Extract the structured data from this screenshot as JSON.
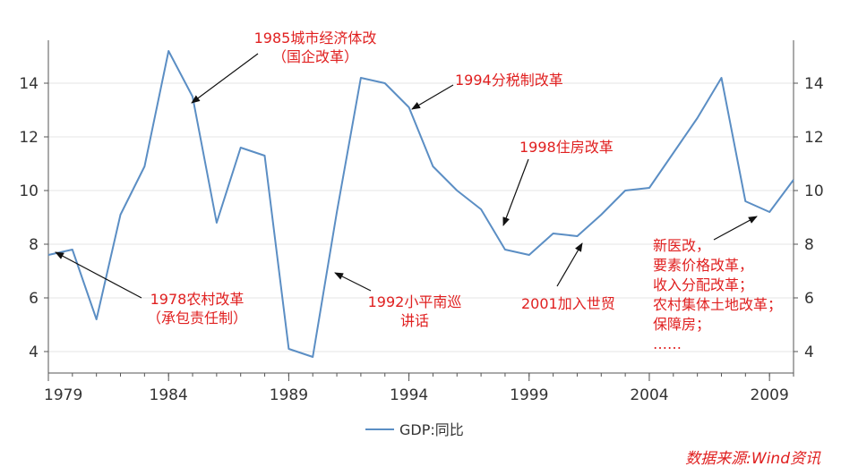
{
  "chart_data": {
    "type": "line",
    "x": [
      1979,
      1980,
      1981,
      1982,
      1983,
      1984,
      1985,
      1986,
      1987,
      1988,
      1989,
      1990,
      1991,
      1992,
      1993,
      1994,
      1995,
      1996,
      1997,
      1998,
      1999,
      2000,
      2001,
      2002,
      2003,
      2004,
      2005,
      2006,
      2007,
      2008,
      2009,
      2010
    ],
    "series": [
      {
        "name": "GDP:同比",
        "color": "#5b8ec4",
        "values": [
          7.6,
          7.8,
          5.2,
          9.1,
          10.9,
          15.2,
          13.5,
          8.8,
          11.6,
          11.3,
          4.1,
          3.8,
          9.2,
          14.2,
          14.0,
          13.1,
          10.9,
          10.0,
          9.3,
          7.8,
          7.6,
          8.4,
          8.3,
          9.1,
          10.0,
          10.1,
          11.4,
          12.7,
          14.2,
          9.6,
          9.2,
          10.4
        ]
      }
    ],
    "xlim": [
      1979,
      2010
    ],
    "ylim": [
      3.2,
      15.6
    ],
    "x_ticks": [
      "1979",
      "1984",
      "1989",
      "1994",
      "1999",
      "2004",
      "2009"
    ],
    "y_ticks": [
      "4",
      "6",
      "8",
      "10",
      "12",
      "14"
    ],
    "grid": true,
    "legend": "bottom-center",
    "annotations": [
      {
        "lines": [
          "1985城市经济体改",
          "（国企改革）"
        ]
      },
      {
        "lines": [
          "1994分税制改革"
        ]
      },
      {
        "lines": [
          "1998住房改革"
        ]
      },
      {
        "lines": [
          "1978农村改革",
          "（承包责任制）"
        ]
      },
      {
        "lines": [
          "1992小平南巡",
          "讲话"
        ]
      },
      {
        "lines": [
          "2001加入世贸"
        ]
      },
      {
        "lines": [
          "新医改，",
          "要素价格改革，",
          "收入分配改革；",
          "农村集体土地改革；",
          "保障房；",
          "……"
        ]
      }
    ],
    "source": "数据来源:Wind资讯"
  }
}
